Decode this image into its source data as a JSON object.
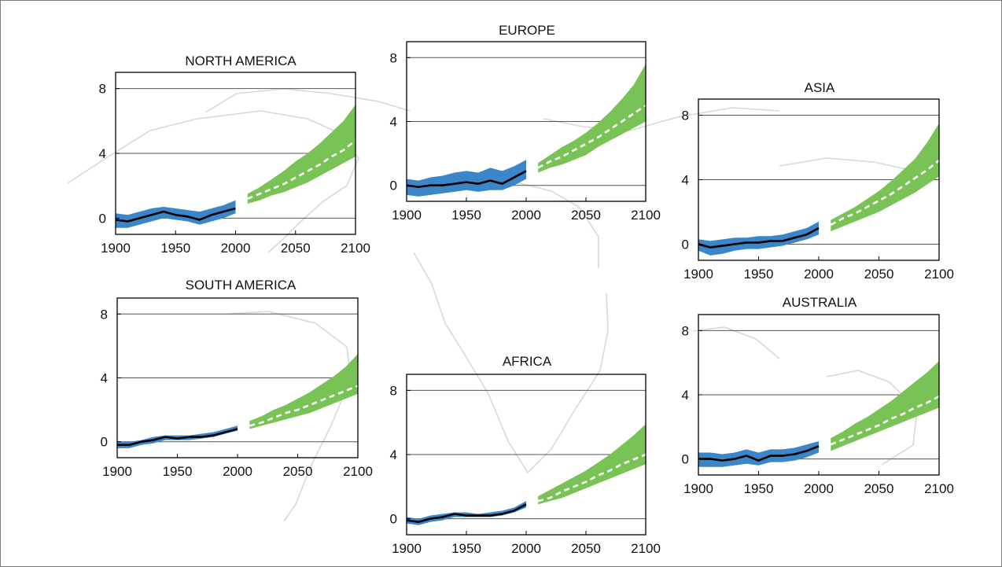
{
  "colors": {
    "observed_band": "#3a86c8",
    "projected_band": "#78c256",
    "observed_line": "#000000",
    "projected_line": "#ffffff",
    "map_outline": "#d8d8d8"
  },
  "chart_data": [
    {
      "type": "area",
      "title": "NORTH AMERICA",
      "xlim": [
        1900,
        2100
      ],
      "ylim": [
        -1,
        9
      ],
      "xticks": [
        "1900",
        "1950",
        "2000",
        "2050",
        "2100"
      ],
      "yticks": [
        "0",
        "4",
        "8"
      ],
      "grid": true,
      "observed": {
        "x": [
          1900,
          1910,
          1920,
          1930,
          1940,
          1950,
          1960,
          1970,
          1980,
          1990,
          2000
        ],
        "mean": [
          -0.1,
          -0.2,
          0.0,
          0.2,
          0.4,
          0.2,
          0.1,
          -0.1,
          0.2,
          0.4,
          0.6
        ],
        "low": [
          -0.6,
          -0.6,
          -0.4,
          -0.2,
          0.0,
          -0.1,
          -0.2,
          -0.4,
          -0.2,
          0.0,
          0.3
        ],
        "high": [
          0.3,
          0.2,
          0.4,
          0.6,
          0.7,
          0.6,
          0.5,
          0.4,
          0.6,
          0.8,
          1.1
        ]
      },
      "projected": {
        "x": [
          2010,
          2020,
          2030,
          2040,
          2050,
          2060,
          2070,
          2080,
          2090,
          2100
        ],
        "mean": [
          1.2,
          1.5,
          1.8,
          2.1,
          2.5,
          2.9,
          3.3,
          3.8,
          4.2,
          4.8
        ],
        "low": [
          0.9,
          1.1,
          1.4,
          1.6,
          1.9,
          2.2,
          2.6,
          3.0,
          3.4,
          3.8
        ],
        "high": [
          1.5,
          1.9,
          2.4,
          2.9,
          3.5,
          4.0,
          4.6,
          5.3,
          6.0,
          7.0
        ]
      }
    },
    {
      "type": "area",
      "title": "EUROPE",
      "xlim": [
        1900,
        2100
      ],
      "ylim": [
        -1,
        9
      ],
      "xticks": [
        "1900",
        "1950",
        "2000",
        "2050",
        "2100"
      ],
      "yticks": [
        "0",
        "4",
        "8"
      ],
      "grid": true,
      "observed": {
        "x": [
          1900,
          1910,
          1920,
          1930,
          1940,
          1950,
          1960,
          1970,
          1980,
          1990,
          2000
        ],
        "mean": [
          0.0,
          -0.1,
          0.0,
          0.0,
          0.1,
          0.2,
          0.1,
          0.3,
          0.1,
          0.5,
          0.9
        ],
        "low": [
          -0.6,
          -0.7,
          -0.6,
          -0.5,
          -0.4,
          -0.3,
          -0.4,
          -0.3,
          -0.3,
          0.0,
          0.4
        ],
        "high": [
          0.4,
          0.3,
          0.5,
          0.6,
          0.8,
          0.9,
          0.8,
          1.1,
          0.9,
          1.2,
          1.6
        ]
      },
      "projected": {
        "x": [
          2010,
          2020,
          2030,
          2040,
          2050,
          2060,
          2070,
          2080,
          2090,
          2100
        ],
        "mean": [
          1.1,
          1.5,
          1.8,
          2.2,
          2.6,
          3.0,
          3.5,
          4.0,
          4.5,
          5.0
        ],
        "low": [
          0.8,
          1.1,
          1.3,
          1.6,
          1.9,
          2.4,
          2.8,
          3.2,
          3.6,
          4.0
        ],
        "high": [
          1.4,
          1.9,
          2.4,
          2.8,
          3.3,
          3.9,
          4.6,
          5.4,
          6.3,
          7.6
        ]
      }
    },
    {
      "type": "area",
      "title": "ASIA",
      "xlim": [
        1900,
        2100
      ],
      "ylim": [
        -1,
        9
      ],
      "xticks": [
        "1900",
        "1950",
        "2000",
        "2050",
        "2100"
      ],
      "yticks": [
        "0",
        "4",
        "8"
      ],
      "grid": true,
      "observed": {
        "x": [
          1900,
          1910,
          1920,
          1930,
          1940,
          1950,
          1960,
          1970,
          1980,
          1990,
          2000
        ],
        "mean": [
          0.0,
          -0.2,
          -0.1,
          0.0,
          0.1,
          0.1,
          0.2,
          0.2,
          0.4,
          0.6,
          1.0
        ],
        "low": [
          -0.4,
          -0.7,
          -0.6,
          -0.4,
          -0.3,
          -0.3,
          -0.2,
          -0.1,
          0.1,
          0.3,
          0.6
        ],
        "high": [
          0.3,
          0.2,
          0.3,
          0.4,
          0.4,
          0.5,
          0.5,
          0.6,
          0.8,
          1.0,
          1.4
        ]
      },
      "projected": {
        "x": [
          2010,
          2020,
          2030,
          2040,
          2050,
          2060,
          2070,
          2080,
          2090,
          2100
        ],
        "mean": [
          1.2,
          1.6,
          1.9,
          2.3,
          2.7,
          3.1,
          3.6,
          4.1,
          4.6,
          5.2
        ],
        "low": [
          0.8,
          1.1,
          1.4,
          1.7,
          2.0,
          2.4,
          2.8,
          3.2,
          3.7,
          4.2
        ],
        "high": [
          1.5,
          1.9,
          2.3,
          2.8,
          3.3,
          3.9,
          4.6,
          5.3,
          6.3,
          7.5
        ]
      }
    },
    {
      "type": "area",
      "title": "SOUTH AMERICA",
      "xlim": [
        1900,
        2100
      ],
      "ylim": [
        -1,
        9
      ],
      "xticks": [
        "1900",
        "1950",
        "2000",
        "2050",
        "2100"
      ],
      "yticks": [
        "0",
        "4",
        "8"
      ],
      "grid": true,
      "observed": {
        "x": [
          1900,
          1910,
          1920,
          1930,
          1940,
          1950,
          1960,
          1970,
          1980,
          1990,
          2000
        ],
        "mean": [
          -0.2,
          -0.2,
          0.0,
          0.1,
          0.3,
          0.2,
          0.3,
          0.3,
          0.4,
          0.6,
          0.8
        ],
        "low": [
          -0.4,
          -0.4,
          -0.2,
          -0.1,
          0.1,
          0.1,
          0.1,
          0.2,
          0.3,
          0.5,
          0.7
        ],
        "high": [
          0.0,
          0.0,
          0.1,
          0.3,
          0.4,
          0.4,
          0.4,
          0.5,
          0.6,
          0.8,
          1.0
        ]
      },
      "projected": {
        "x": [
          2010,
          2020,
          2030,
          2040,
          2050,
          2060,
          2070,
          2080,
          2090,
          2100
        ],
        "mean": [
          1.0,
          1.2,
          1.5,
          1.8,
          2.0,
          2.3,
          2.6,
          2.9,
          3.2,
          3.5
        ],
        "low": [
          0.8,
          1.0,
          1.2,
          1.4,
          1.6,
          1.8,
          2.1,
          2.4,
          2.7,
          3.0
        ],
        "high": [
          1.3,
          1.6,
          2.0,
          2.3,
          2.7,
          3.1,
          3.6,
          4.1,
          4.7,
          5.5
        ]
      }
    },
    {
      "type": "area",
      "title": "AFRICA",
      "xlim": [
        1900,
        2100
      ],
      "ylim": [
        -1,
        9
      ],
      "xticks": [
        "1900",
        "1950",
        "2000",
        "2050",
        "2100"
      ],
      "yticks": [
        "0",
        "4",
        "8"
      ],
      "grid": true,
      "observed": {
        "x": [
          1900,
          1910,
          1920,
          1930,
          1940,
          1950,
          1960,
          1970,
          1980,
          1990,
          2000
        ],
        "mean": [
          -0.1,
          -0.2,
          0.0,
          0.1,
          0.3,
          0.2,
          0.2,
          0.2,
          0.3,
          0.5,
          0.9
        ],
        "low": [
          -0.3,
          -0.4,
          -0.2,
          -0.1,
          0.1,
          0.1,
          0.1,
          0.1,
          0.2,
          0.4,
          0.7
        ],
        "high": [
          0.1,
          0.0,
          0.2,
          0.3,
          0.4,
          0.4,
          0.3,
          0.4,
          0.5,
          0.7,
          1.1
        ]
      },
      "projected": {
        "x": [
          2010,
          2020,
          2030,
          2040,
          2050,
          2060,
          2070,
          2080,
          2090,
          2100
        ],
        "mean": [
          1.1,
          1.3,
          1.7,
          2.0,
          2.3,
          2.7,
          3.0,
          3.4,
          3.7,
          4.0
        ],
        "low": [
          0.9,
          1.1,
          1.3,
          1.6,
          1.9,
          2.2,
          2.5,
          2.8,
          3.1,
          3.4
        ],
        "high": [
          1.4,
          1.8,
          2.2,
          2.6,
          3.0,
          3.5,
          4.0,
          4.6,
          5.2,
          5.9
        ]
      }
    },
    {
      "type": "area",
      "title": "AUSTRALIA",
      "xlim": [
        1900,
        2100
      ],
      "ylim": [
        -1,
        9
      ],
      "xticks": [
        "1900",
        "1950",
        "2000",
        "2050",
        "2100"
      ],
      "yticks": [
        "0",
        "4",
        "8"
      ],
      "grid": true,
      "observed": {
        "x": [
          1900,
          1910,
          1920,
          1930,
          1940,
          1950,
          1960,
          1970,
          1980,
          1990,
          2000
        ],
        "mean": [
          0.0,
          0.0,
          -0.1,
          0.0,
          0.2,
          -0.1,
          0.2,
          0.2,
          0.3,
          0.5,
          0.8
        ],
        "low": [
          -0.5,
          -0.5,
          -0.5,
          -0.4,
          -0.3,
          -0.4,
          -0.2,
          -0.2,
          -0.1,
          0.1,
          0.4
        ],
        "high": [
          0.4,
          0.4,
          0.3,
          0.4,
          0.6,
          0.4,
          0.6,
          0.6,
          0.7,
          0.9,
          1.1
        ]
      },
      "projected": {
        "x": [
          2010,
          2020,
          2030,
          2040,
          2050,
          2060,
          2070,
          2080,
          2090,
          2100
        ],
        "mean": [
          0.9,
          1.2,
          1.5,
          1.8,
          2.1,
          2.5,
          2.8,
          3.2,
          3.5,
          3.9
        ],
        "low": [
          0.5,
          0.8,
          1.1,
          1.4,
          1.7,
          2.0,
          2.3,
          2.6,
          2.9,
          3.2
        ],
        "high": [
          1.3,
          1.7,
          2.2,
          2.6,
          3.1,
          3.6,
          4.2,
          4.8,
          5.4,
          6.1
        ]
      }
    }
  ]
}
